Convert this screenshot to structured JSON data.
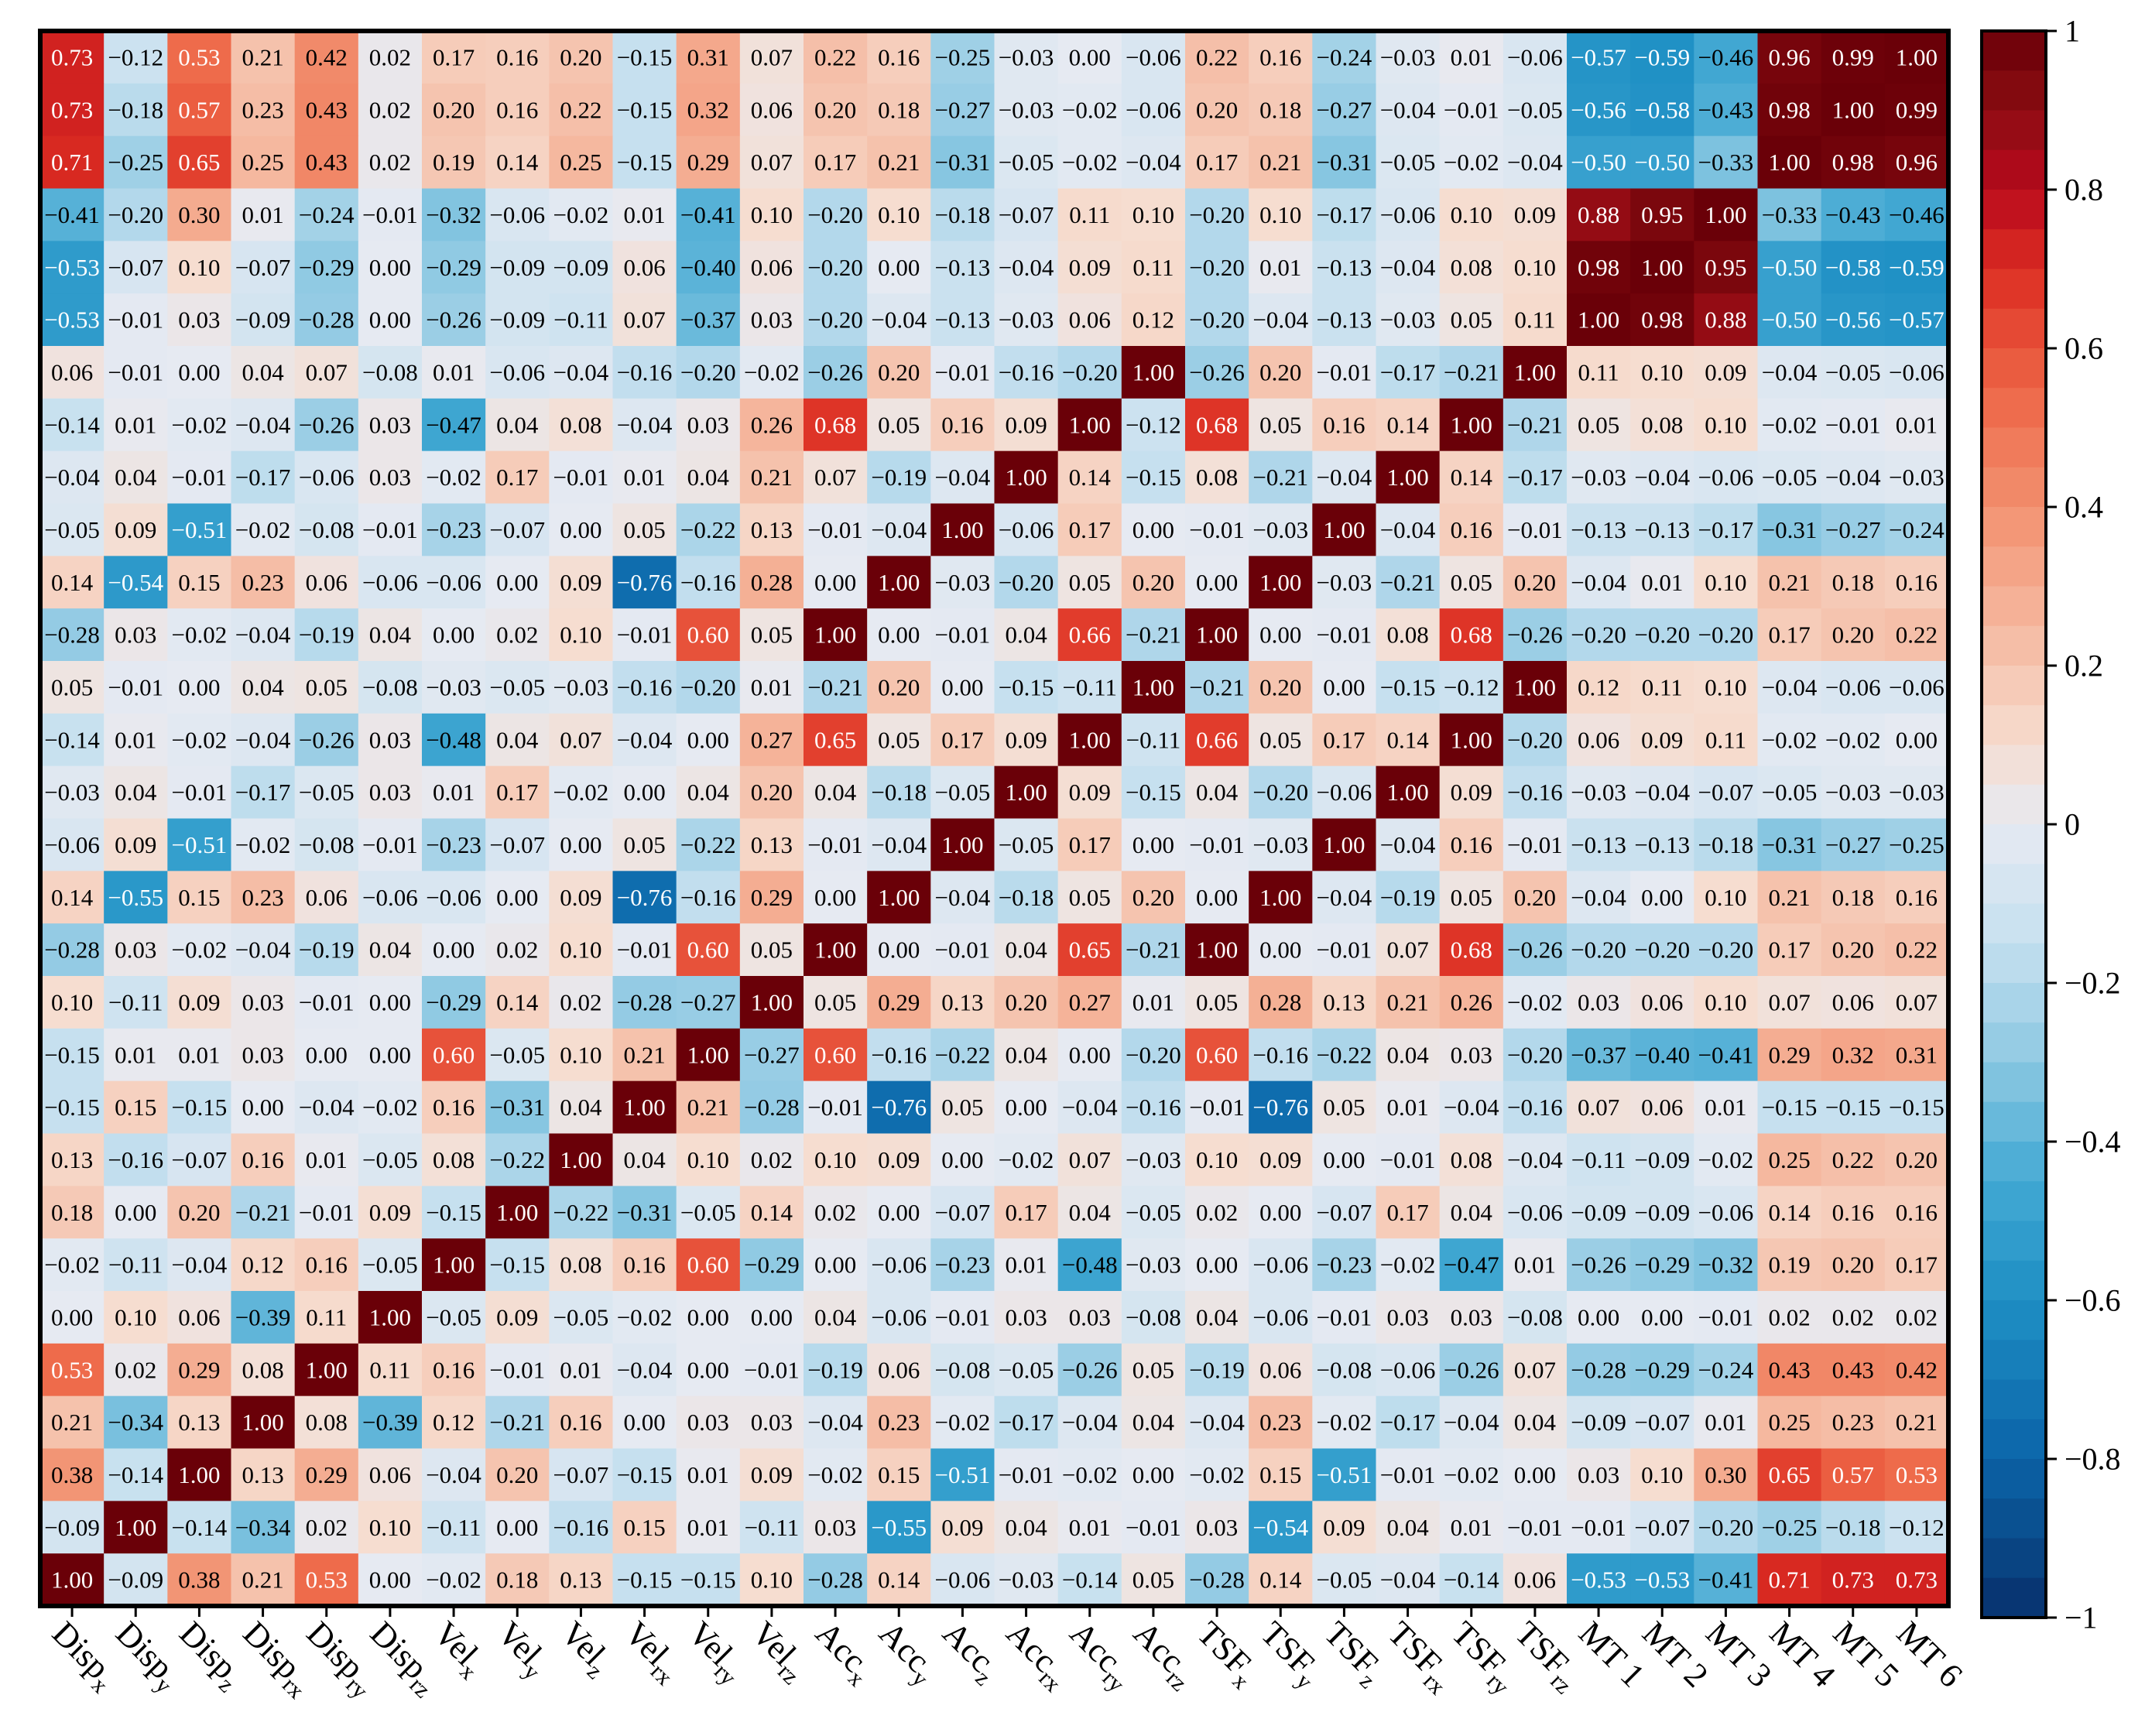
{
  "chart_data": {
    "type": "heatmap",
    "title": "",
    "xlabel": "",
    "ylabel": "",
    "x_labels": [
      {
        "base": "Disp",
        "sub": "x"
      },
      {
        "base": "Disp",
        "sub": "y"
      },
      {
        "base": "Disp",
        "sub": "z"
      },
      {
        "base": "Disp",
        "sub": "rx"
      },
      {
        "base": "Disp",
        "sub": "ry"
      },
      {
        "base": "Disp",
        "sub": "rz"
      },
      {
        "base": "Vel",
        "sub": "x"
      },
      {
        "base": "Vel",
        "sub": "y"
      },
      {
        "base": "Vel",
        "sub": "z"
      },
      {
        "base": "Vel",
        "sub": "rx"
      },
      {
        "base": "Vel",
        "sub": "ry"
      },
      {
        "base": "Vel",
        "sub": "rz"
      },
      {
        "base": "Acc",
        "sub": "x"
      },
      {
        "base": "Acc",
        "sub": "y"
      },
      {
        "base": "Acc",
        "sub": "z"
      },
      {
        "base": "Acc",
        "sub": "rx"
      },
      {
        "base": "Acc",
        "sub": "ry"
      },
      {
        "base": "Acc",
        "sub": "rz"
      },
      {
        "base": "TSF",
        "sub": "x"
      },
      {
        "base": "TSF",
        "sub": "y"
      },
      {
        "base": "TSF",
        "sub": "z"
      },
      {
        "base": "TSF",
        "sub": "rx"
      },
      {
        "base": "TSF",
        "sub": "ry"
      },
      {
        "base": "TSF",
        "sub": "rz"
      },
      {
        "base": "MT 1",
        "sub": ""
      },
      {
        "base": "MT 2",
        "sub": ""
      },
      {
        "base": "MT 3",
        "sub": ""
      },
      {
        "base": "MT 4",
        "sub": ""
      },
      {
        "base": "MT 5",
        "sub": ""
      },
      {
        "base": "MT 6",
        "sub": ""
      }
    ],
    "values": [
      [
        0.73,
        -0.12,
        0.53,
        0.21,
        0.42,
        0.02,
        0.17,
        0.16,
        0.2,
        -0.15,
        0.31,
        0.07,
        0.22,
        0.16,
        -0.25,
        -0.03,
        0.0,
        -0.06,
        0.22,
        0.16,
        -0.24,
        -0.03,
        0.01,
        -0.06,
        -0.57,
        -0.59,
        -0.46,
        0.96,
        0.99,
        1.0
      ],
      [
        0.73,
        -0.18,
        0.57,
        0.23,
        0.43,
        0.02,
        0.2,
        0.16,
        0.22,
        -0.15,
        0.32,
        0.06,
        0.2,
        0.18,
        -0.27,
        -0.03,
        -0.02,
        -0.06,
        0.2,
        0.18,
        -0.27,
        -0.04,
        -0.01,
        -0.05,
        -0.56,
        -0.58,
        -0.43,
        0.98,
        1.0,
        0.99
      ],
      [
        0.71,
        -0.25,
        0.65,
        0.25,
        0.43,
        0.02,
        0.19,
        0.14,
        0.25,
        -0.15,
        0.29,
        0.07,
        0.17,
        0.21,
        -0.31,
        -0.05,
        -0.02,
        -0.04,
        0.17,
        0.21,
        -0.31,
        -0.05,
        -0.02,
        -0.04,
        -0.5,
        -0.5,
        -0.33,
        1.0,
        0.98,
        0.96
      ],
      [
        -0.41,
        -0.2,
        0.3,
        0.01,
        -0.24,
        -0.01,
        -0.32,
        -0.06,
        -0.02,
        0.01,
        -0.41,
        0.1,
        -0.2,
        0.1,
        -0.18,
        -0.07,
        0.11,
        0.1,
        -0.2,
        0.1,
        -0.17,
        -0.06,
        0.1,
        0.09,
        0.88,
        0.95,
        1.0,
        -0.33,
        -0.43,
        -0.46
      ],
      [
        -0.53,
        -0.07,
        0.1,
        -0.07,
        -0.29,
        0.0,
        -0.29,
        -0.09,
        -0.09,
        0.06,
        -0.4,
        0.06,
        -0.2,
        0.0,
        -0.13,
        -0.04,
        0.09,
        0.11,
        -0.2,
        0.01,
        -0.13,
        -0.04,
        0.08,
        0.1,
        0.98,
        1.0,
        0.95,
        -0.5,
        -0.58,
        -0.59
      ],
      [
        -0.53,
        -0.01,
        0.03,
        -0.09,
        -0.28,
        0.0,
        -0.26,
        -0.09,
        -0.11,
        0.07,
        -0.37,
        0.03,
        -0.2,
        -0.04,
        -0.13,
        -0.03,
        0.06,
        0.12,
        -0.2,
        -0.04,
        -0.13,
        -0.03,
        0.05,
        0.11,
        1.0,
        0.98,
        0.88,
        -0.5,
        -0.56,
        -0.57
      ],
      [
        0.06,
        -0.01,
        -0.0,
        0.04,
        0.07,
        -0.08,
        0.01,
        -0.06,
        -0.04,
        -0.16,
        -0.2,
        -0.02,
        -0.26,
        0.2,
        -0.01,
        -0.16,
        -0.2,
        1.0,
        -0.26,
        0.2,
        -0.01,
        -0.17,
        -0.21,
        1.0,
        0.11,
        0.1,
        0.09,
        -0.04,
        -0.05,
        -0.06
      ],
      [
        -0.14,
        0.01,
        -0.02,
        -0.04,
        -0.26,
        0.03,
        -0.47,
        0.04,
        0.08,
        -0.04,
        0.03,
        0.26,
        0.68,
        0.05,
        0.16,
        0.09,
        1.0,
        -0.12,
        0.68,
        0.05,
        0.16,
        0.14,
        1.0,
        -0.21,
        0.05,
        0.08,
        0.1,
        -0.02,
        -0.01,
        0.01
      ],
      [
        -0.04,
        0.04,
        -0.01,
        -0.17,
        -0.06,
        0.03,
        -0.02,
        0.17,
        -0.01,
        0.01,
        0.04,
        0.21,
        0.07,
        -0.19,
        -0.04,
        1.0,
        0.14,
        -0.15,
        0.08,
        -0.21,
        -0.04,
        1.0,
        0.14,
        -0.17,
        -0.03,
        -0.04,
        -0.06,
        -0.05,
        -0.04,
        -0.03
      ],
      [
        -0.05,
        0.09,
        -0.51,
        -0.02,
        -0.08,
        -0.01,
        -0.23,
        -0.07,
        0.0,
        0.05,
        -0.22,
        0.13,
        -0.01,
        -0.04,
        1.0,
        -0.06,
        0.17,
        0.0,
        -0.01,
        -0.03,
        1.0,
        -0.04,
        0.16,
        -0.01,
        -0.13,
        -0.13,
        -0.17,
        -0.31,
        -0.27,
        -0.24
      ],
      [
        0.14,
        -0.54,
        0.15,
        0.23,
        0.06,
        -0.06,
        -0.06,
        -0.0,
        0.09,
        -0.76,
        -0.16,
        0.28,
        -0.0,
        1.0,
        -0.03,
        -0.2,
        0.05,
        0.2,
        -0.0,
        1.0,
        -0.03,
        -0.21,
        0.05,
        0.2,
        -0.04,
        0.01,
        0.1,
        0.21,
        0.18,
        0.16
      ],
      [
        -0.28,
        0.03,
        -0.02,
        -0.04,
        -0.19,
        0.04,
        -0.0,
        0.02,
        0.1,
        -0.01,
        0.6,
        0.05,
        1.0,
        -0.0,
        -0.01,
        0.04,
        0.66,
        -0.21,
        1.0,
        -0.0,
        -0.01,
        0.08,
        0.68,
        -0.26,
        -0.2,
        -0.2,
        -0.2,
        0.17,
        0.2,
        0.22
      ],
      [
        0.05,
        -0.01,
        -0.0,
        0.04,
        0.05,
        -0.08,
        -0.03,
        -0.05,
        -0.03,
        -0.16,
        -0.2,
        0.01,
        -0.21,
        0.2,
        0.0,
        -0.15,
        -0.11,
        1.0,
        -0.21,
        0.2,
        0.0,
        -0.15,
        -0.12,
        1.0,
        0.12,
        0.11,
        0.1,
        -0.04,
        -0.06,
        -0.06
      ],
      [
        -0.14,
        0.01,
        -0.02,
        -0.04,
        -0.26,
        0.03,
        -0.48,
        0.04,
        0.07,
        -0.04,
        0.0,
        0.27,
        0.65,
        0.05,
        0.17,
        0.09,
        1.0,
        -0.11,
        0.66,
        0.05,
        0.17,
        0.14,
        1.0,
        -0.2,
        0.06,
        0.09,
        0.11,
        -0.02,
        -0.02,
        0.0
      ],
      [
        -0.03,
        0.04,
        -0.01,
        -0.17,
        -0.05,
        0.03,
        0.01,
        0.17,
        -0.02,
        0.0,
        0.04,
        0.2,
        0.04,
        -0.18,
        -0.05,
        1.0,
        0.09,
        -0.15,
        0.04,
        -0.2,
        -0.06,
        1.0,
        0.09,
        -0.16,
        -0.03,
        -0.04,
        -0.07,
        -0.05,
        -0.03,
        -0.03
      ],
      [
        -0.06,
        0.09,
        -0.51,
        -0.02,
        -0.08,
        -0.01,
        -0.23,
        -0.07,
        0.0,
        0.05,
        -0.22,
        0.13,
        -0.01,
        -0.04,
        1.0,
        -0.05,
        0.17,
        0.0,
        -0.01,
        -0.03,
        1.0,
        -0.04,
        0.16,
        -0.01,
        -0.13,
        -0.13,
        -0.18,
        -0.31,
        -0.27,
        -0.25
      ],
      [
        0.14,
        -0.55,
        0.15,
        0.23,
        0.06,
        -0.06,
        -0.06,
        -0.0,
        0.09,
        -0.76,
        -0.16,
        0.29,
        -0.0,
        1.0,
        -0.04,
        -0.18,
        0.05,
        0.2,
        -0.0,
        1.0,
        -0.04,
        -0.19,
        0.05,
        0.2,
        -0.04,
        0.0,
        0.1,
        0.21,
        0.18,
        0.16
      ],
      [
        -0.28,
        0.03,
        -0.02,
        -0.04,
        -0.19,
        0.04,
        -0.0,
        0.02,
        0.1,
        -0.01,
        0.6,
        0.05,
        1.0,
        -0.0,
        -0.01,
        0.04,
        0.65,
        -0.21,
        1.0,
        -0.0,
        -0.01,
        0.07,
        0.68,
        -0.26,
        -0.2,
        -0.2,
        -0.2,
        0.17,
        0.2,
        0.22
      ],
      [
        0.1,
        -0.11,
        0.09,
        0.03,
        -0.01,
        0.0,
        -0.29,
        0.14,
        0.02,
        -0.28,
        -0.27,
        1.0,
        0.05,
        0.29,
        0.13,
        0.2,
        0.27,
        0.01,
        0.05,
        0.28,
        0.13,
        0.21,
        0.26,
        -0.02,
        0.03,
        0.06,
        0.1,
        0.07,
        0.06,
        0.07
      ],
      [
        -0.15,
        0.01,
        0.01,
        0.03,
        -0.0,
        0.0,
        0.6,
        -0.05,
        0.1,
        0.21,
        1.0,
        -0.27,
        0.6,
        -0.16,
        -0.22,
        0.04,
        0.0,
        -0.2,
        0.6,
        -0.16,
        -0.22,
        0.04,
        0.03,
        -0.2,
        -0.37,
        -0.4,
        -0.41,
        0.29,
        0.32,
        0.31
      ],
      [
        -0.15,
        0.15,
        -0.15,
        -0.0,
        -0.04,
        -0.02,
        0.16,
        -0.31,
        0.04,
        1.0,
        0.21,
        -0.28,
        -0.01,
        -0.76,
        0.05,
        0.0,
        -0.04,
        -0.16,
        -0.01,
        -0.76,
        0.05,
        0.01,
        -0.04,
        -0.16,
        0.07,
        0.06,
        0.01,
        -0.15,
        -0.15,
        -0.15
      ],
      [
        0.13,
        -0.16,
        -0.07,
        0.16,
        0.01,
        -0.05,
        0.08,
        -0.22,
        1.0,
        0.04,
        0.1,
        0.02,
        0.1,
        0.09,
        0.0,
        -0.02,
        0.07,
        -0.03,
        0.1,
        0.09,
        0.0,
        -0.01,
        0.08,
        -0.04,
        -0.11,
        -0.09,
        -0.02,
        0.25,
        0.22,
        0.2
      ],
      [
        0.18,
        0.0,
        0.2,
        -0.21,
        -0.01,
        0.09,
        -0.15,
        1.0,
        -0.22,
        -0.31,
        -0.05,
        0.14,
        0.02,
        -0.0,
        -0.07,
        0.17,
        0.04,
        -0.05,
        0.02,
        -0.0,
        -0.07,
        0.17,
        0.04,
        -0.06,
        -0.09,
        -0.09,
        -0.06,
        0.14,
        0.16,
        0.16
      ],
      [
        -0.02,
        -0.11,
        -0.04,
        0.12,
        0.16,
        -0.05,
        1.0,
        -0.15,
        0.08,
        0.16,
        0.6,
        -0.29,
        -0.0,
        -0.06,
        -0.23,
        0.01,
        -0.48,
        -0.03,
        -0.0,
        -0.06,
        -0.23,
        -0.02,
        -0.47,
        0.01,
        -0.26,
        -0.29,
        -0.32,
        0.19,
        0.2,
        0.17
      ],
      [
        -0.0,
        0.1,
        0.06,
        -0.39,
        0.11,
        1.0,
        -0.05,
        0.09,
        -0.05,
        -0.02,
        0.0,
        0.0,
        0.04,
        -0.06,
        -0.01,
        0.03,
        0.03,
        -0.08,
        0.04,
        -0.06,
        -0.01,
        0.03,
        0.03,
        -0.08,
        0.0,
        0.0,
        -0.01,
        0.02,
        0.02,
        0.02
      ],
      [
        0.53,
        0.02,
        0.29,
        0.08,
        1.0,
        0.11,
        0.16,
        -0.01,
        0.01,
        -0.04,
        -0.0,
        -0.01,
        -0.19,
        0.06,
        -0.08,
        -0.05,
        -0.26,
        0.05,
        -0.19,
        0.06,
        -0.08,
        -0.06,
        -0.26,
        0.07,
        -0.28,
        -0.29,
        -0.24,
        0.43,
        0.43,
        0.42
      ],
      [
        0.21,
        -0.34,
        0.13,
        1.0,
        0.08,
        -0.39,
        0.12,
        -0.21,
        0.16,
        -0.0,
        0.03,
        0.03,
        -0.04,
        0.23,
        -0.02,
        -0.17,
        -0.04,
        0.04,
        -0.04,
        0.23,
        -0.02,
        -0.17,
        -0.04,
        0.04,
        -0.09,
        -0.07,
        0.01,
        0.25,
        0.23,
        0.21
      ],
      [
        0.38,
        -0.14,
        1.0,
        0.13,
        0.29,
        0.06,
        -0.04,
        0.2,
        -0.07,
        -0.15,
        0.01,
        0.09,
        -0.02,
        0.15,
        -0.51,
        -0.01,
        -0.02,
        -0.0,
        -0.02,
        0.15,
        -0.51,
        -0.01,
        -0.02,
        -0.0,
        0.03,
        0.1,
        0.3,
        0.65,
        0.57,
        0.53
      ],
      [
        -0.09,
        1.0,
        -0.14,
        -0.34,
        0.02,
        0.1,
        -0.11,
        0.0,
        -0.16,
        0.15,
        0.01,
        -0.11,
        0.03,
        -0.55,
        0.09,
        0.04,
        0.01,
        -0.01,
        0.03,
        -0.54,
        0.09,
        0.04,
        0.01,
        -0.01,
        -0.01,
        -0.07,
        -0.2,
        -0.25,
        -0.18,
        -0.12
      ],
      [
        1.0,
        -0.09,
        0.38,
        0.21,
        0.53,
        -0.0,
        -0.02,
        0.18,
        0.13,
        -0.15,
        -0.15,
        0.1,
        -0.28,
        0.14,
        -0.06,
        -0.03,
        -0.14,
        0.05,
        -0.28,
        0.14,
        -0.05,
        -0.04,
        -0.14,
        0.06,
        -0.53,
        -0.53,
        -0.41,
        0.71,
        0.73,
        0.73
      ]
    ],
    "colorbar": {
      "range": [
        -1,
        1
      ],
      "ticks": [
        1,
        0.8,
        0.6,
        0.4,
        0.2,
        0,
        -0.2,
        -0.4,
        -0.6,
        -0.8,
        -1
      ],
      "tick_labels": [
        "1",
        "0.8",
        "0.6",
        "0.4",
        "0.2",
        "0",
        "−0.2",
        "−0.4",
        "−0.6",
        "−0.8",
        "−1"
      ],
      "colors": [
        "#08306b",
        "#0b64a8",
        "#1e8fc4",
        "#43a9d3",
        "#8cc8e2",
        "#c6e0ef",
        "#e6eaf2",
        "#f6ddd0",
        "#f5b89f",
        "#f2906f",
        "#ed6546",
        "#dc2d22",
        "#b8091c",
        "#8b0d12",
        "#6a0008"
      ],
      "color_positions": [
        -1.0,
        -0.8,
        -0.6,
        -0.45,
        -0.3,
        -0.15,
        0.0,
        0.1,
        0.25,
        0.4,
        0.55,
        0.7,
        0.8,
        0.9,
        1.0
      ]
    }
  }
}
